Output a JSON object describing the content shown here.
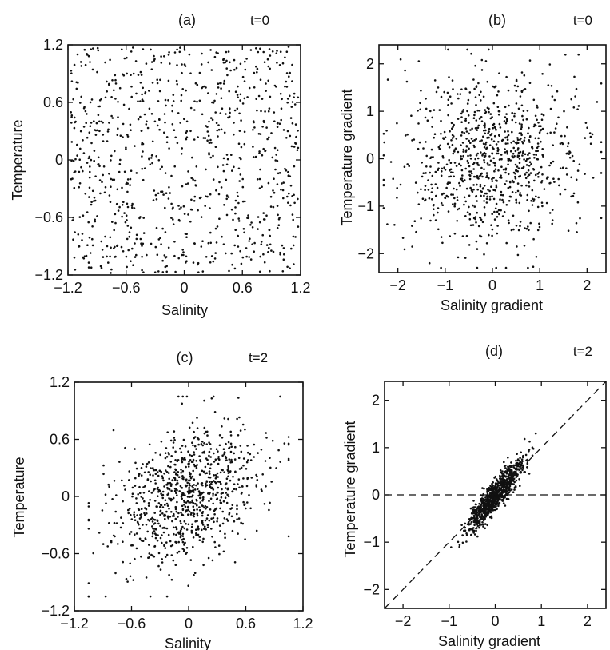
{
  "chart_data": [
    {
      "id": "a",
      "type": "scatter",
      "panel_label": "(a)",
      "time_label": "t=0",
      "xlabel": "Salinity",
      "ylabel": "Temperature",
      "xlim": [
        -1.2,
        1.2
      ],
      "ylim": [
        -1.2,
        1.2
      ],
      "xticks": [
        -1.2,
        -0.6,
        0,
        0.6,
        1.2
      ],
      "yticks": [
        -1.2,
        -0.6,
        0,
        0.6,
        1.2
      ],
      "xtick_labels": [
        "−1.2",
        "−0.6",
        "0",
        "0.6",
        "1.2"
      ],
      "ytick_labels": [
        "−1.2",
        "−0.6",
        "0",
        "0.6",
        "1.2"
      ],
      "distribution": {
        "kind": "uniform",
        "count": 900,
        "x_range": [
          -1.18,
          1.18
        ],
        "y_range": [
          -1.18,
          1.18
        ]
      },
      "reference_lines": []
    },
    {
      "id": "b",
      "type": "scatter",
      "panel_label": "(b)",
      "time_label": "t=0",
      "xlabel": "Salinity gradient",
      "ylabel": "Temperature gradient",
      "xlim": [
        -2.4,
        2.4
      ],
      "ylim": [
        -2.4,
        2.4
      ],
      "xticks": [
        -2,
        -1,
        0,
        1,
        2
      ],
      "yticks": [
        -2,
        -1,
        0,
        1,
        2
      ],
      "xtick_labels": [
        "−2",
        "−1",
        "0",
        "1",
        "2"
      ],
      "ytick_labels": [
        "−2",
        "−1",
        "0",
        "1",
        "2"
      ],
      "distribution": {
        "kind": "gaussian",
        "count": 900,
        "mean": [
          0,
          0
        ],
        "std": [
          0.9,
          0.9
        ],
        "corr": 0.0,
        "clip": [
          -2.3,
          2.3
        ]
      },
      "reference_lines": []
    },
    {
      "id": "c",
      "type": "scatter",
      "panel_label": "(c)",
      "time_label": "t=2",
      "xlabel": "Salinity",
      "ylabel": "Temperature",
      "xlim": [
        -1.2,
        1.2
      ],
      "ylim": [
        -1.2,
        1.2
      ],
      "xticks": [
        -1.2,
        -0.6,
        0,
        0.6,
        1.2
      ],
      "yticks": [
        -1.2,
        -0.6,
        0,
        0.6,
        1.2
      ],
      "xtick_labels": [
        "−1.2",
        "−0.6",
        "0",
        "0.6",
        "1.2"
      ],
      "ytick_labels": [
        "−1.2",
        "−0.6",
        "0",
        "0.6",
        "1.2"
      ],
      "distribution": {
        "kind": "gaussian",
        "count": 900,
        "mean": [
          0,
          0
        ],
        "std": [
          0.4,
          0.38
        ],
        "corr": 0.35,
        "clip": [
          -1.05,
          1.05
        ]
      },
      "reference_lines": []
    },
    {
      "id": "d",
      "type": "scatter",
      "panel_label": "(d)",
      "time_label": "t=2",
      "xlabel": "Salinity gradient",
      "ylabel": "Temperature gradient",
      "xlim": [
        -2.4,
        2.4
      ],
      "ylim": [
        -2.4,
        2.4
      ],
      "xticks": [
        -2,
        -1,
        0,
        1,
        2
      ],
      "yticks": [
        -2,
        -1,
        0,
        1,
        2
      ],
      "xtick_labels": [
        "−2",
        "−1",
        "0",
        "1",
        "2"
      ],
      "ytick_labels": [
        "−2",
        "−1",
        "0",
        "1",
        "2"
      ],
      "distribution": {
        "kind": "gaussian",
        "count": 900,
        "mean": [
          0,
          0
        ],
        "std": [
          0.3,
          0.38
        ],
        "corr": 0.9,
        "clip": [
          -1.3,
          1.3
        ]
      },
      "reference_lines": [
        {
          "kind": "dashed",
          "from": [
            -2.4,
            0
          ],
          "to": [
            2.4,
            0
          ]
        },
        {
          "kind": "dashed",
          "from": [
            -2.4,
            -2.4
          ],
          "to": [
            2.4,
            2.4
          ]
        }
      ]
    }
  ]
}
